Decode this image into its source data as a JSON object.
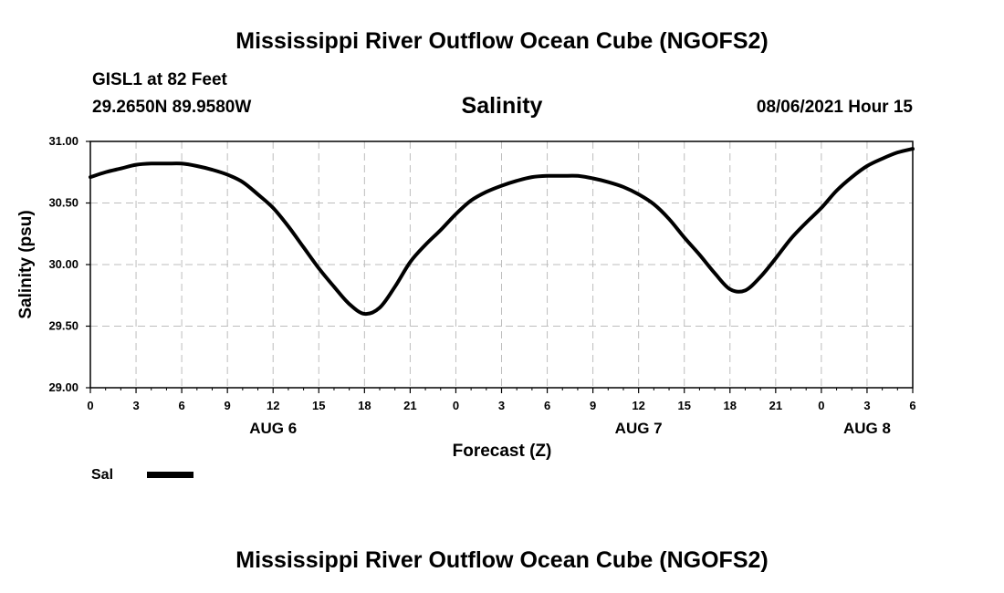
{
  "header": {
    "title": "Mississippi River Outflow Ocean Cube (NGOFS2)",
    "station": "GISL1 at 82 Feet",
    "coords": "29.2650N  89.9580W",
    "variable": "Salinity",
    "datetime": "08/06/2021 Hour 15"
  },
  "footer": {
    "title": "Mississippi River Outflow Ocean Cube (NGOFS2)"
  },
  "legend": {
    "label": "Sal",
    "color": "#000000"
  },
  "chart_data": {
    "type": "line",
    "title": "Salinity",
    "xlabel": "Forecast (Z)",
    "ylabel": "Salinity (psu)",
    "ylim": [
      29.0,
      31.0
    ],
    "xlim": [
      0,
      54
    ],
    "yticks": [
      "29.00",
      "29.50",
      "30.00",
      "30.50",
      "31.00"
    ],
    "xticks": [
      "0",
      "3",
      "6",
      "9",
      "12",
      "15",
      "18",
      "21",
      "0",
      "3",
      "6",
      "9",
      "12",
      "15",
      "18",
      "21",
      "0",
      "3",
      "6"
    ],
    "date_labels": [
      {
        "label": "AUG 6",
        "hour": 12
      },
      {
        "label": "AUG 7",
        "hour": 36
      },
      {
        "label": "AUG 8",
        "hour": 51
      }
    ],
    "grid": true,
    "legend_position": "bottom-left",
    "series": [
      {
        "name": "Sal",
        "color": "#000000",
        "x": [
          0,
          1,
          2,
          3,
          4,
          5,
          6,
          7,
          8,
          9,
          10,
          11,
          12,
          13,
          14,
          15,
          16,
          17,
          18,
          19,
          20,
          21,
          22,
          23,
          24,
          25,
          26,
          27,
          28,
          29,
          30,
          31,
          32,
          33,
          34,
          35,
          36,
          37,
          38,
          39,
          40,
          41,
          42,
          43,
          44,
          45,
          46,
          47,
          48,
          49,
          50,
          51,
          52,
          53,
          54
        ],
        "values": [
          30.71,
          30.75,
          30.78,
          30.81,
          30.82,
          30.82,
          30.82,
          30.8,
          30.77,
          30.73,
          30.67,
          30.57,
          30.46,
          30.31,
          30.14,
          29.97,
          29.82,
          29.68,
          29.6,
          29.65,
          29.82,
          30.02,
          30.16,
          30.28,
          30.41,
          30.52,
          30.59,
          30.64,
          30.68,
          30.71,
          30.72,
          30.72,
          30.72,
          30.7,
          30.67,
          30.63,
          30.57,
          30.49,
          30.37,
          30.22,
          30.08,
          29.93,
          29.8,
          29.79,
          29.9,
          30.05,
          30.21,
          30.34,
          30.46,
          30.6,
          30.71,
          30.8,
          30.86,
          30.91,
          30.94
        ]
      }
    ]
  }
}
